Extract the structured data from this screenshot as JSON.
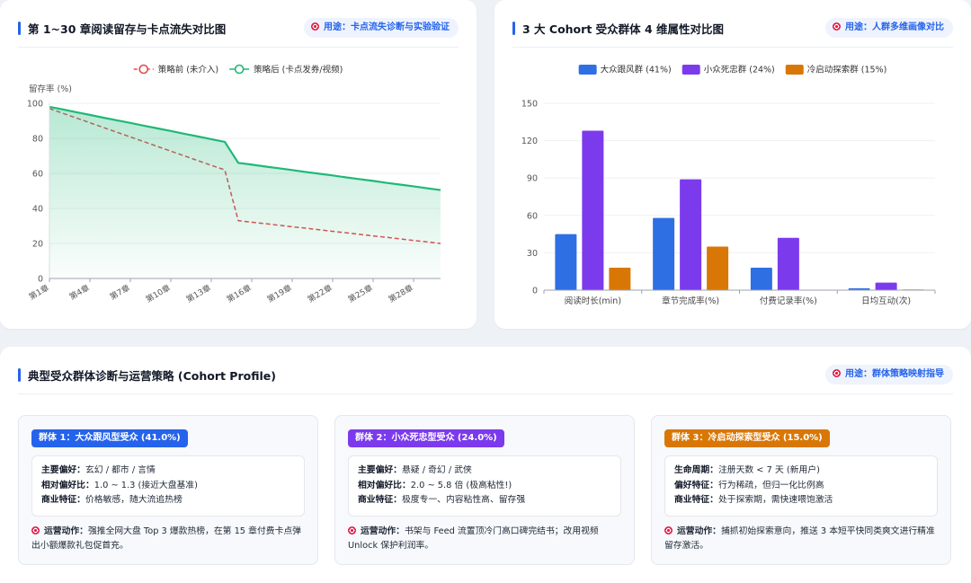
{
  "chart_data": [
    {
      "type": "line",
      "title": "第 1~30 章阅读留存与卡点流失对比图",
      "badge": "用途：卡点流失诊断与实验验证",
      "ylabel": "留存率 (%)",
      "categories": [
        "第1章",
        null,
        null,
        "第4章",
        null,
        null,
        "第7章",
        null,
        null,
        "第10章",
        null,
        null,
        "第13章",
        null,
        null,
        "第16章",
        null,
        null,
        "第19章",
        null,
        null,
        "第22章",
        null,
        null,
        "第25章",
        null,
        null,
        "第28章",
        null,
        null
      ],
      "series": [
        {
          "name": "策略前 (未介入)",
          "color": "#e5484d",
          "dashed": true,
          "values": [
            97,
            94.3,
            91.6,
            88.9,
            86.2,
            83.5,
            80.8,
            78.1,
            75.4,
            72.7,
            70,
            67.3,
            64.6,
            62,
            33,
            32.1,
            31.3,
            30.4,
            29.5,
            28.7,
            27.8,
            26.9,
            26.1,
            25.2,
            24.3,
            23.5,
            22.6,
            21.7,
            20.9,
            20
          ]
        },
        {
          "name": "策略后 (卡点发券/视频)",
          "color": "#1fb877",
          "area": true,
          "values": [
            98,
            96.5,
            94.9,
            93.4,
            91.8,
            90.3,
            88.8,
            87.2,
            85.7,
            84.2,
            82.6,
            81.1,
            79.5,
            78,
            66,
            65,
            63.9,
            62.9,
            61.9,
            60.8,
            59.8,
            58.8,
            57.7,
            56.7,
            55.7,
            54.6,
            53.6,
            52.6,
            51.5,
            50.5
          ]
        }
      ],
      "ylim": [
        0,
        100
      ],
      "yticks": [
        0,
        20,
        40,
        60,
        80,
        100
      ],
      "grid": true,
      "legend": "top"
    },
    {
      "type": "bar",
      "title": "3 大 Cohort 受众群体 4 维属性对比图",
      "badge": "用途：人群多维画像对比",
      "categories": [
        "阅读时长(min)",
        "章节完成率(%)",
        "付费记录率(%)",
        "日均互动(次)"
      ],
      "series": [
        {
          "name": "大众跟风群 (41%)",
          "color": "#2f6fe4",
          "values": [
            45,
            58,
            18,
            1.5
          ]
        },
        {
          "name": "小众死忠群 (24%)",
          "color": "#7c3aed",
          "values": [
            128,
            89,
            42,
            6
          ]
        },
        {
          "name": "冷启动探索群 (15%)",
          "color": "#d97706",
          "values": [
            18,
            35,
            0,
            0.5
          ]
        }
      ],
      "ylim": [
        0,
        150
      ],
      "yticks": [
        0,
        30,
        60,
        90,
        120,
        150
      ],
      "grid": true,
      "legend": "top"
    }
  ],
  "profile": {
    "title": "典型受众群体诊断与运营策略 (Cohort Profile)",
    "badge": "用途：群体策略映射指导",
    "groups": [
      {
        "tag": "群体 1：大众跟风型受众 (41.0%)",
        "color": "#2563eb",
        "rows": [
          {
            "label": "主要偏好：",
            "text": "玄幻 / 都市 / 言情"
          },
          {
            "label": "相对偏好比：",
            "text": "1.0 ~ 1.3 (接近大盘基准)"
          },
          {
            "label": "商业特征：",
            "text": "价格敏感，随大流追热榜"
          }
        ],
        "action_label": "运营动作：",
        "action": "强推全网大盘 Top 3 爆款热榜，在第 15 章付费卡点弹出小额爆款礼包促首充。"
      },
      {
        "tag": "群体 2：小众死忠型受众 (24.0%)",
        "color": "#7c3aed",
        "rows": [
          {
            "label": "主要偏好：",
            "text": "悬疑 / 奇幻 / 武侠"
          },
          {
            "label": "相对偏好比：",
            "text": "2.0 ~ 5.8 倍 (极高粘性!)"
          },
          {
            "label": "商业特征：",
            "text": "极度专一、内容粘性高、留存强"
          }
        ],
        "action_label": "运营动作：",
        "action": "书架与 Feed 流置顶冷门高口碑完结书；改用视频 Unlock 保护利润率。"
      },
      {
        "tag": "群体 3：冷启动探索型受众 (15.0%)",
        "color": "#d97706",
        "rows": [
          {
            "label": "生命周期：",
            "text": "注册天数 < 7 天 (新用户)"
          },
          {
            "label": "偏好特征：",
            "text": "行为稀疏，但归一化比例高"
          },
          {
            "label": "商业特征：",
            "text": "处于探索期，需快速喂饱激活"
          }
        ],
        "action_label": "运营动作：",
        "action": "捕抓初始探索意向，推送 3 本短平快同类爽文进行精准留存激活。"
      }
    ]
  }
}
